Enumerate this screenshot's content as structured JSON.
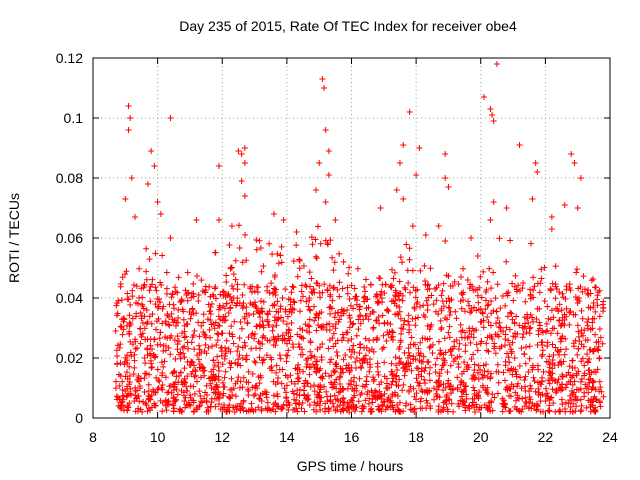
{
  "chart_data": {
    "type": "scatter",
    "title": "Day 235 of 2015, Rate Of TEC Index for receiver obe4",
    "xlabel": "GPS time / hours",
    "ylabel": "ROTI / TECUs",
    "xlim": [
      8,
      24
    ],
    "ylim": [
      0,
      0.12
    ],
    "xticks": [
      8,
      10,
      12,
      14,
      16,
      18,
      20,
      22,
      24
    ],
    "yticks": [
      0,
      0.02,
      0.04,
      0.06,
      0.08,
      0.1,
      0.12
    ],
    "xtick_labels": [
      "8",
      "10",
      "12",
      "14",
      "16",
      "18",
      "20",
      "22",
      "24"
    ],
    "ytick_labels": [
      "0",
      "0.02",
      "0.04",
      "0.06",
      "0.08",
      "0.1",
      "0.12"
    ],
    "grid": true,
    "marker": "+",
    "marker_color": "#ff0000",
    "series": [
      {
        "name": "ROTI",
        "x_range": [
          8.7,
          23.8
        ],
        "y_min_typical": 0.002,
        "dense_band_max": 0.045,
        "envelope": [
          [
            8.7,
            0.045
          ],
          [
            9.0,
            0.05
          ],
          [
            9.5,
            0.055
          ],
          [
            10.0,
            0.06
          ],
          [
            10.5,
            0.05
          ],
          [
            11.0,
            0.05
          ],
          [
            11.5,
            0.05
          ],
          [
            12.0,
            0.06
          ],
          [
            12.5,
            0.065
          ],
          [
            13.0,
            0.06
          ],
          [
            13.5,
            0.06
          ],
          [
            14.0,
            0.06
          ],
          [
            14.5,
            0.06
          ],
          [
            15.0,
            0.065
          ],
          [
            15.5,
            0.06
          ],
          [
            16.0,
            0.05
          ],
          [
            16.5,
            0.05
          ],
          [
            17.0,
            0.05
          ],
          [
            17.5,
            0.06
          ],
          [
            18.0,
            0.055
          ],
          [
            18.5,
            0.05
          ],
          [
            19.0,
            0.05
          ],
          [
            19.5,
            0.05
          ],
          [
            20.0,
            0.055
          ],
          [
            20.5,
            0.06
          ],
          [
            21.0,
            0.06
          ],
          [
            21.5,
            0.06
          ],
          [
            22.0,
            0.055
          ],
          [
            22.5,
            0.05
          ],
          [
            23.0,
            0.05
          ],
          [
            23.5,
            0.048
          ],
          [
            23.8,
            0.045
          ]
        ],
        "outliers": [
          [
            9.1,
            0.104
          ],
          [
            9.15,
            0.1
          ],
          [
            9.1,
            0.096
          ],
          [
            9.2,
            0.08
          ],
          [
            9.0,
            0.073
          ],
          [
            9.3,
            0.067
          ],
          [
            9.8,
            0.089
          ],
          [
            9.9,
            0.084
          ],
          [
            9.7,
            0.078
          ],
          [
            10.0,
            0.072
          ],
          [
            10.1,
            0.068
          ],
          [
            10.4,
            0.1
          ],
          [
            11.2,
            0.066
          ],
          [
            11.9,
            0.084
          ],
          [
            12.5,
            0.089
          ],
          [
            12.6,
            0.088
          ],
          [
            12.7,
            0.09
          ],
          [
            12.7,
            0.085
          ],
          [
            12.6,
            0.079
          ],
          [
            12.7,
            0.074
          ],
          [
            12.3,
            0.064
          ],
          [
            13.9,
            0.066
          ],
          [
            14.3,
            0.062
          ],
          [
            15.0,
            0.085
          ],
          [
            15.1,
            0.113
          ],
          [
            15.15,
            0.11
          ],
          [
            15.2,
            0.096
          ],
          [
            15.3,
            0.089
          ],
          [
            15.3,
            0.081
          ],
          [
            15.2,
            0.072
          ],
          [
            14.9,
            0.076
          ],
          [
            15.5,
            0.066
          ],
          [
            17.4,
            0.076
          ],
          [
            17.5,
            0.085
          ],
          [
            17.6,
            0.091
          ],
          [
            17.8,
            0.102
          ],
          [
            17.9,
            0.064
          ],
          [
            18.1,
            0.09
          ],
          [
            18.0,
            0.081
          ],
          [
            18.3,
            0.061
          ],
          [
            18.9,
            0.088
          ],
          [
            18.9,
            0.08
          ],
          [
            19.0,
            0.077
          ],
          [
            18.9,
            0.059
          ],
          [
            20.1,
            0.107
          ],
          [
            20.3,
            0.103
          ],
          [
            20.35,
            0.101
          ],
          [
            20.4,
            0.099
          ],
          [
            20.5,
            0.118
          ],
          [
            20.4,
            0.072
          ],
          [
            20.3,
            0.066
          ],
          [
            20.8,
            0.07
          ],
          [
            21.2,
            0.091
          ],
          [
            21.7,
            0.085
          ],
          [
            21.75,
            0.082
          ],
          [
            21.6,
            0.073
          ],
          [
            22.2,
            0.067
          ],
          [
            22.2,
            0.063
          ],
          [
            22.8,
            0.088
          ],
          [
            22.9,
            0.085
          ],
          [
            23.1,
            0.08
          ],
          [
            22.6,
            0.071
          ],
          [
            23.0,
            0.07
          ],
          [
            19.7,
            0.06
          ],
          [
            18.7,
            0.064
          ],
          [
            17.6,
            0.073
          ],
          [
            16.9,
            0.07
          ],
          [
            13.6,
            0.068
          ],
          [
            11.9,
            0.066
          ],
          [
            10.4,
            0.06
          ]
        ]
      }
    ]
  }
}
